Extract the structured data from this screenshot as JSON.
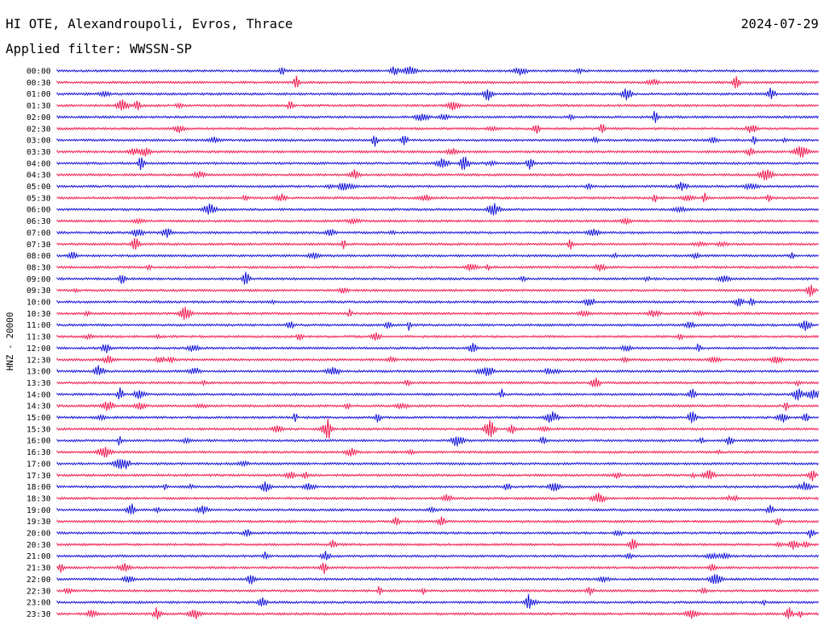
{
  "header": {
    "station": "HI OTE, Alexandroupoli, Evros, Thrace",
    "date": "2024-07-29",
    "filter": "Applied filter: WWSSN-SP"
  },
  "y_axis_label": "HNZ - 20000",
  "colors": {
    "even_hour": "#1010d8",
    "half_hour": "#f0184e"
  },
  "chart_data": {
    "type": "line",
    "kind": "helicorder",
    "traces": [
      "00:00",
      "00:30",
      "01:00",
      "01:30",
      "02:00",
      "02:30",
      "03:00",
      "03:30",
      "04:00",
      "04:30",
      "05:00",
      "05:30",
      "06:00",
      "06:30",
      "07:00",
      "07:30",
      "08:00",
      "08:30",
      "09:00",
      "09:30",
      "10:00",
      "10:30",
      "11:00",
      "11:30",
      "12:00",
      "12:30",
      "13:00",
      "13:30",
      "14:00",
      "14:30",
      "15:00",
      "15:30",
      "16:00",
      "16:30",
      "17:00",
      "17:30",
      "18:00",
      "18:30",
      "19:00",
      "19:30",
      "20:00",
      "20:30",
      "21:00",
      "21:30",
      "22:00",
      "22:30",
      "23:00",
      "23:30"
    ],
    "line_minutes": 30,
    "grid": false,
    "color_cycle": [
      "#1010d8",
      "#f0184e"
    ]
  }
}
